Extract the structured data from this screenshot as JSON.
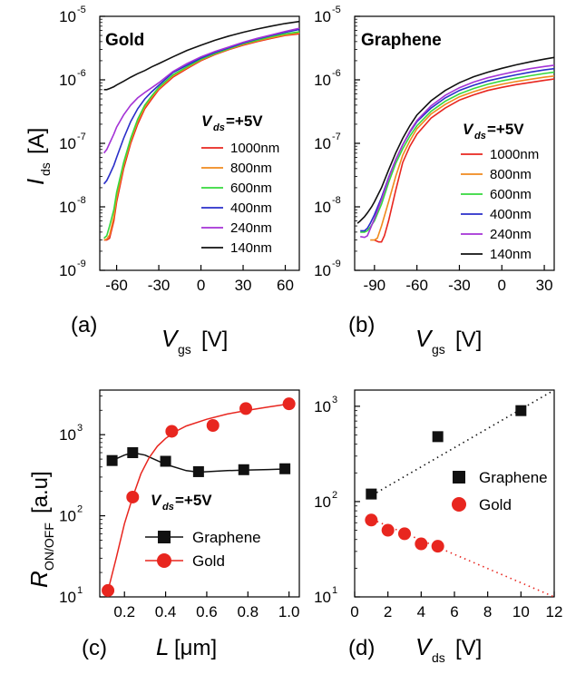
{
  "chart_data": [
    {
      "panel": "(a)",
      "type": "line",
      "title": "Gold",
      "xlabel": "V",
      "xlabel_sub": "gs",
      "xlabel_unit": "[V]",
      "ylabel": "I",
      "ylabel_sub": "ds",
      "ylabel_unit": "[A]",
      "ylog": true,
      "xlim": [
        -72,
        70
      ],
      "ylim_exp": [
        -9,
        -5
      ],
      "xticks": [
        "-60",
        "-30",
        "0",
        "30",
        "60"
      ],
      "yticks": [
        {
          "base": "10",
          "exp": "-9"
        },
        {
          "base": "10",
          "exp": "-8"
        },
        {
          "base": "10",
          "exp": "-7"
        },
        {
          "base": "10",
          "exp": "-6"
        },
        {
          "base": "10",
          "exp": "-5"
        }
      ],
      "legend_title": {
        "main": "V",
        "sub": "ds",
        "rest": "=+5V"
      },
      "legend_position": "right",
      "series": [
        {
          "name": "1000nm",
          "color": "#e8261f",
          "x": [
            -69,
            -67,
            -65,
            -62,
            -60,
            -55,
            -50,
            -45,
            -40,
            -35,
            -30,
            -20,
            -10,
            0,
            10,
            20,
            30,
            40,
            50,
            60,
            70
          ],
          "y": [
            3e-09,
            3e-09,
            3.2e-09,
            6e-09,
            1.2e-08,
            4e-08,
            1e-07,
            2e-07,
            3.5e-07,
            5e-07,
            7e-07,
            1.1e-06,
            1.5e-06,
            2e-06,
            2.5e-06,
            3e-06,
            3.5e-06,
            4e-06,
            4.5e-06,
            5e-06,
            5.3e-06
          ]
        },
        {
          "name": "800nm",
          "color": "#f08a1e",
          "x": [
            -69,
            -67,
            -65,
            -62,
            -60,
            -55,
            -50,
            -45,
            -40,
            -35,
            -30,
            -20,
            -10,
            0,
            10,
            20,
            30,
            40,
            50,
            60,
            70
          ],
          "y": [
            3e-09,
            3.1e-09,
            3.6e-09,
            7e-09,
            1.4e-08,
            4.5e-08,
            1.1e-07,
            2.2e-07,
            3.7e-07,
            5.3e-07,
            7.3e-07,
            1.15e-06,
            1.55e-06,
            2.05e-06,
            2.55e-06,
            3.05e-06,
            3.6e-06,
            4.1e-06,
            4.6e-06,
            5.1e-06,
            5.5e-06
          ]
        },
        {
          "name": "600nm",
          "color": "#35d83d",
          "x": [
            -69,
            -67,
            -65,
            -62,
            -60,
            -55,
            -50,
            -45,
            -40,
            -35,
            -30,
            -20,
            -10,
            0,
            10,
            20,
            30,
            40,
            50,
            60,
            70
          ],
          "y": [
            3.2e-09,
            3.5e-09,
            5e-09,
            9e-09,
            1.7e-08,
            5e-08,
            1.2e-07,
            2.4e-07,
            4e-07,
            5.6e-07,
            7.6e-07,
            1.2e-06,
            1.6e-06,
            2.1e-06,
            2.6e-06,
            3.1e-06,
            3.7e-06,
            4.2e-06,
            4.8e-06,
            5.3e-06,
            5.7e-06
          ]
        },
        {
          "name": "400nm",
          "color": "#2a2ec9",
          "x": [
            -69,
            -67,
            -65,
            -62,
            -60,
            -55,
            -50,
            -45,
            -40,
            -35,
            -30,
            -20,
            -10,
            0,
            10,
            20,
            30,
            40,
            50,
            60,
            70
          ],
          "y": [
            2.3e-08,
            2.6e-08,
            3.2e-08,
            4.5e-08,
            6e-08,
            1.2e-07,
            2.2e-07,
            3.5e-07,
            5e-07,
            6.5e-07,
            8.2e-07,
            1.3e-06,
            1.7e-06,
            2.2e-06,
            2.7e-06,
            3.2e-06,
            3.8e-06,
            4.4e-06,
            5e-06,
            5.6e-06,
            6.2e-06
          ]
        },
        {
          "name": "240nm",
          "color": "#a433d6",
          "x": [
            -69,
            -67,
            -65,
            -62,
            -60,
            -55,
            -50,
            -45,
            -40,
            -35,
            -30,
            -20,
            -10,
            0,
            10,
            20,
            30,
            40,
            50,
            60,
            70
          ],
          "y": [
            7e-08,
            8e-08,
            1e-07,
            1.4e-07,
            1.8e-07,
            2.8e-07,
            4e-07,
            5.2e-07,
            6.3e-07,
            7.5e-07,
            9e-07,
            1.35e-06,
            1.8e-06,
            2.3e-06,
            2.8e-06,
            3.3e-06,
            3.9e-06,
            4.5e-06,
            5.1e-06,
            5.8e-06,
            6.5e-06
          ]
        },
        {
          "name": "140nm",
          "color": "#111111",
          "x": [
            -69,
            -67,
            -65,
            -62,
            -60,
            -55,
            -50,
            -45,
            -40,
            -35,
            -30,
            -20,
            -10,
            0,
            10,
            20,
            30,
            40,
            50,
            60,
            70
          ],
          "y": [
            7e-07,
            7e-07,
            7.3e-07,
            7.8e-07,
            8.3e-07,
            9.5e-07,
            1.1e-06,
            1.25e-06,
            1.4e-06,
            1.6e-06,
            1.8e-06,
            2.3e-06,
            2.9e-06,
            3.5e-06,
            4.2e-06,
            4.9e-06,
            5.6e-06,
            6.3e-06,
            7e-06,
            7.7e-06,
            8.3e-06
          ]
        }
      ]
    },
    {
      "panel": "(b)",
      "type": "line",
      "title": "Graphene",
      "xlabel": "V",
      "xlabel_sub": "gs",
      "xlabel_unit": "[V]",
      "ylog": true,
      "xlim": [
        -104,
        37
      ],
      "ylim_exp": [
        -9,
        -5
      ],
      "xticks": [
        "-90",
        "-60",
        "-30",
        "0",
        "30"
      ],
      "yticks": [
        {
          "base": "10",
          "exp": "-9"
        },
        {
          "base": "10",
          "exp": "-8"
        },
        {
          "base": "10",
          "exp": "-7"
        },
        {
          "base": "10",
          "exp": "-6"
        },
        {
          "base": "10",
          "exp": "-5"
        }
      ],
      "legend_title": {
        "main": "V",
        "sub": "ds",
        "rest": "=+5V"
      },
      "legend_position": "right",
      "series": [
        {
          "name": "1000nm",
          "color": "#e8261f",
          "x": [
            -90,
            -87,
            -85,
            -83,
            -80,
            -75,
            -70,
            -65,
            -60,
            -50,
            -40,
            -30,
            -20,
            -10,
            0,
            10,
            20,
            30,
            37
          ],
          "y": [
            3e-09,
            2.8e-09,
            2.8e-09,
            3.5e-09,
            6e-09,
            1.8e-08,
            5e-08,
            9e-08,
            1.4e-07,
            2.5e-07,
            3.6e-07,
            4.8e-07,
            5.8e-07,
            6.8e-07,
            7.6e-07,
            8.4e-07,
            9.1e-07,
            9.8e-07,
            1.03e-06
          ]
        },
        {
          "name": "800nm",
          "color": "#f08a1e",
          "x": [
            -93,
            -90,
            -88,
            -85,
            -80,
            -75,
            -70,
            -65,
            -60,
            -50,
            -40,
            -30,
            -20,
            -10,
            0,
            10,
            20,
            30,
            37
          ],
          "y": [
            3e-09,
            3e-09,
            3.2e-09,
            5e-09,
            1.2e-08,
            3e-08,
            6.5e-08,
            1.1e-07,
            1.7e-07,
            2.9e-07,
            4.1e-07,
            5.4e-07,
            6.5e-07,
            7.6e-07,
            8.5e-07,
            9.4e-07,
            1.02e-06,
            1.1e-06,
            1.15e-06
          ]
        },
        {
          "name": "600nm",
          "color": "#35d83d",
          "x": [
            -100,
            -97,
            -95,
            -93,
            -90,
            -85,
            -80,
            -75,
            -70,
            -65,
            -60,
            -50,
            -40,
            -30,
            -20,
            -10,
            0,
            10,
            20,
            30,
            37
          ],
          "y": [
            4e-09,
            4e-09,
            4.2e-09,
            4.8e-09,
            6e-09,
            1.1e-08,
            2.4e-08,
            4.8e-08,
            8.2e-08,
            1.3e-07,
            1.9e-07,
            3.2e-07,
            4.6e-07,
            6e-07,
            7.3e-07,
            8.5e-07,
            9.6e-07,
            1.06e-06,
            1.16e-06,
            1.26e-06,
            1.32e-06
          ]
        },
        {
          "name": "400nm",
          "color": "#2a2ec9",
          "x": [
            -100,
            -97,
            -95,
            -93,
            -90,
            -85,
            -80,
            -75,
            -70,
            -65,
            -60,
            -50,
            -40,
            -30,
            -20,
            -10,
            0,
            10,
            20,
            30,
            37
          ],
          "y": [
            4.2e-09,
            4.2e-09,
            4.6e-09,
            5.5e-09,
            7.5e-09,
            1.4e-08,
            2.9e-08,
            5.5e-08,
            9.5e-08,
            1.5e-07,
            2.2e-07,
            3.6e-07,
            5.2e-07,
            6.8e-07,
            8.2e-07,
            9.6e-07,
            1.08e-06,
            1.2e-06,
            1.32e-06,
            1.43e-06,
            1.5e-06
          ]
        },
        {
          "name": "240nm",
          "color": "#a433d6",
          "x": [
            -100,
            -97,
            -95,
            -93,
            -90,
            -85,
            -80,
            -75,
            -70,
            -65,
            -60,
            -50,
            -40,
            -30,
            -20,
            -10,
            0,
            10,
            20,
            30,
            37
          ],
          "y": [
            3.4e-09,
            3.3e-09,
            3.5e-09,
            4.5e-09,
            6.5e-09,
            1.3e-08,
            2.8e-08,
            5.5e-08,
            9.5e-08,
            1.55e-07,
            2.3e-07,
            3.9e-07,
            5.7e-07,
            7.5e-07,
            9.2e-07,
            1.08e-06,
            1.22e-06,
            1.36e-06,
            1.5e-06,
            1.62e-06,
            1.7e-06
          ]
        },
        {
          "name": "140nm",
          "color": "#111111",
          "x": [
            -102,
            -100,
            -97,
            -95,
            -92,
            -90,
            -85,
            -80,
            -75,
            -70,
            -65,
            -60,
            -50,
            -40,
            -30,
            -20,
            -10,
            0,
            10,
            20,
            30,
            37
          ],
          "y": [
            5.5e-09,
            6e-09,
            7e-09,
            8e-09,
            1e-08,
            1.2e-08,
            2e-08,
            3.8e-08,
            7e-08,
            1.2e-07,
            1.9e-07,
            2.8e-07,
            4.7e-07,
            6.8e-07,
            9e-07,
            1.12e-06,
            1.32e-06,
            1.52e-06,
            1.72e-06,
            1.92e-06,
            2.12e-06,
            2.25e-06
          ]
        }
      ]
    },
    {
      "panel": "(c)",
      "type": "scatter",
      "xlabel": "L",
      "xlabel_unit": "[μm]",
      "ylabel": "R",
      "ylabel_sub": "ON/OFF",
      "ylabel_unit": "[a.u]",
      "ylog": true,
      "xlim": [
        0.08,
        1.05
      ],
      "ylim_exp": [
        1,
        3.55
      ],
      "xticks": [
        "0.2",
        "0.4",
        "0.6",
        "0.8",
        "1.0"
      ],
      "yticks": [
        {
          "base": "10",
          "exp": "1"
        },
        {
          "base": "10",
          "exp": "2"
        },
        {
          "base": "10",
          "exp": "3"
        }
      ],
      "legend_title": {
        "main": "V",
        "sub": "ds",
        "rest": "=+5V"
      },
      "legend_position": "center-right",
      "series": [
        {
          "name": "Graphene",
          "color": "#111111",
          "marker": "square",
          "x": [
            0.14,
            0.24,
            0.4,
            0.56,
            0.78,
            0.98
          ],
          "y": [
            480,
            600,
            470,
            350,
            370,
            380
          ],
          "fit_x": [
            0.14,
            0.2,
            0.24,
            0.3,
            0.4,
            0.5,
            0.56,
            0.7,
            0.78,
            0.9,
            0.98
          ],
          "fit_y": [
            480,
            560,
            600,
            560,
            430,
            360,
            345,
            360,
            365,
            372,
            378
          ]
        },
        {
          "name": "Gold",
          "color": "#e8261f",
          "marker": "circle",
          "x": [
            0.12,
            0.24,
            0.43,
            0.63,
            0.79,
            1.0
          ],
          "y": [
            12,
            170,
            1100,
            1300,
            2100,
            2400
          ],
          "fit_x": [
            0.12,
            0.16,
            0.2,
            0.24,
            0.28,
            0.32,
            0.36,
            0.4,
            0.45,
            0.5,
            0.6,
            0.7,
            0.8,
            0.9,
            1.0
          ],
          "fit_y": [
            12,
            30,
            80,
            170,
            330,
            520,
            720,
            900,
            1100,
            1280,
            1550,
            1800,
            2000,
            2200,
            2400
          ]
        }
      ]
    },
    {
      "panel": "(d)",
      "type": "scatter",
      "xlabel": "V",
      "xlabel_sub": "ds",
      "xlabel_unit": "[V]",
      "ylog": true,
      "xlim": [
        0,
        12
      ],
      "ylim_exp": [
        1,
        3.17
      ],
      "xticks": [
        "0",
        "2",
        "4",
        "6",
        "8",
        "10",
        "12"
      ],
      "yticks": [
        {
          "base": "10",
          "exp": "1"
        },
        {
          "base": "10",
          "exp": "2"
        },
        {
          "base": "10",
          "exp": "3"
        }
      ],
      "legend_position": "center-right",
      "series": [
        {
          "name": "Graphene",
          "color": "#111111",
          "marker": "square",
          "x": [
            1,
            5,
            10
          ],
          "y": [
            120,
            480,
            900
          ],
          "trend_x": [
            0.8,
            12
          ],
          "trend_y": [
            110,
            1480
          ]
        },
        {
          "name": "Gold",
          "color": "#e8261f",
          "marker": "circle",
          "x": [
            1,
            2,
            3,
            4,
            5
          ],
          "y": [
            64,
            50,
            46,
            36,
            34
          ],
          "trend_x": [
            0.8,
            12
          ],
          "trend_y": [
            68,
            10
          ]
        }
      ]
    }
  ]
}
